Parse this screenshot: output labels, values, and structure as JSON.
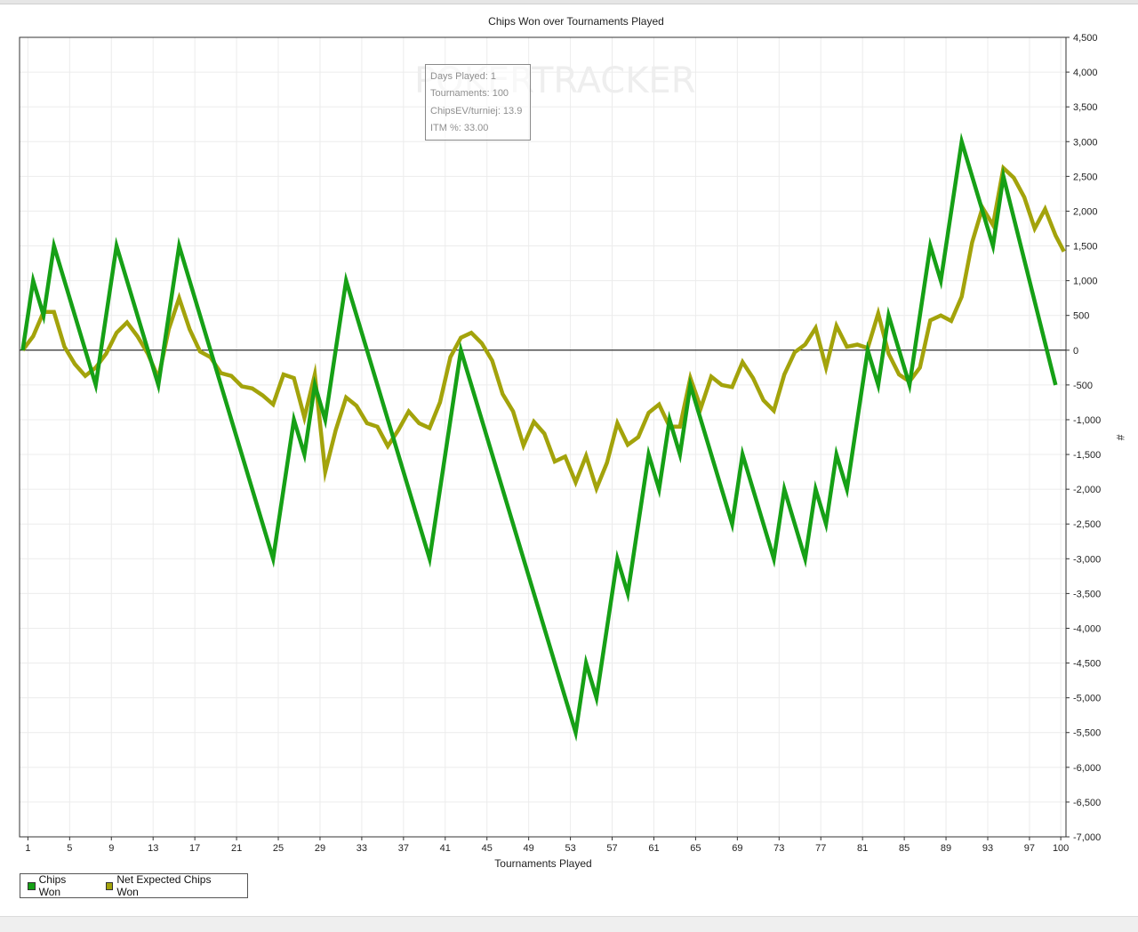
{
  "watermark": "POKERTRACKER",
  "tooltip": {
    "lines": [
      "Days Played: 1",
      "Tournaments: 100",
      "ChipsEV/turniej: 13.9",
      "ITM %: 33.00"
    ]
  },
  "colors": {
    "chips_won": "#16a016",
    "net_expected": "#a3a30b",
    "zero_line": "#000000",
    "grid": "#ececec"
  },
  "chart_data": {
    "type": "line",
    "title": "Chips Won over Tournaments Played",
    "xlabel": "Tournaments Played",
    "ylabel": "#",
    "xlim": [
      0.2,
      100.5
    ],
    "ylim": [
      -7000,
      4500
    ],
    "x_ticks": [
      1,
      5,
      9,
      13,
      17,
      21,
      25,
      29,
      33,
      37,
      41,
      45,
      49,
      53,
      57,
      61,
      65,
      69,
      73,
      77,
      81,
      85,
      89,
      93,
      97,
      100
    ],
    "y_ticks": [
      4500,
      4000,
      3500,
      3000,
      2500,
      2000,
      1500,
      1000,
      500,
      0,
      -500,
      -1000,
      -1500,
      -2000,
      -2500,
      -3000,
      -3500,
      -4000,
      -4500,
      -5000,
      -5500,
      -6000,
      -6500,
      -7000
    ],
    "grid": true,
    "legend_position": "bottom-left",
    "series": [
      {
        "name": "Chips Won",
        "points": [
          [
            0.5,
            0
          ],
          [
            1.5,
            1000
          ],
          [
            2.5,
            500
          ],
          [
            3.5,
            1500
          ],
          [
            7.5,
            -500
          ],
          [
            9.5,
            1500
          ],
          [
            13.5,
            -500
          ],
          [
            15.5,
            1500
          ],
          [
            24.5,
            -3000
          ],
          [
            26.5,
            -1000
          ],
          [
            27.5,
            -1500
          ],
          [
            28.5,
            -500
          ],
          [
            29.5,
            -1000
          ],
          [
            31.5,
            1000
          ],
          [
            39.5,
            -3000
          ],
          [
            42.5,
            0
          ],
          [
            53.5,
            -5500
          ],
          [
            54.5,
            -4500
          ],
          [
            55.5,
            -5000
          ],
          [
            57.5,
            -3000
          ],
          [
            58.5,
            -3500
          ],
          [
            60.5,
            -1500
          ],
          [
            61.5,
            -2000
          ],
          [
            62.5,
            -1000
          ],
          [
            63.5,
            -1500
          ],
          [
            64.5,
            -500
          ],
          [
            68.5,
            -2500
          ],
          [
            69.5,
            -1500
          ],
          [
            72.5,
            -3000
          ],
          [
            73.5,
            -2000
          ],
          [
            75.5,
            -3000
          ],
          [
            76.5,
            -2000
          ],
          [
            77.5,
            -2500
          ],
          [
            78.5,
            -1500
          ],
          [
            79.5,
            -2000
          ],
          [
            81.5,
            0
          ],
          [
            82.5,
            -500
          ],
          [
            83.5,
            500
          ],
          [
            85.5,
            -500
          ],
          [
            87.5,
            1500
          ],
          [
            88.5,
            1000
          ],
          [
            90.5,
            3000
          ],
          [
            93.5,
            1500
          ],
          [
            94.5,
            2500
          ],
          [
            99.5,
            -500
          ]
        ]
      },
      {
        "name": "Net Expected Chips Won",
        "points": [
          [
            0.5,
            0
          ],
          [
            1.5,
            200
          ],
          [
            2.5,
            550
          ],
          [
            3.5,
            550
          ],
          [
            4.5,
            50
          ],
          [
            5.5,
            -200
          ],
          [
            6.5,
            -370
          ],
          [
            7.5,
            -250
          ],
          [
            8.5,
            -50
          ],
          [
            9.5,
            250
          ],
          [
            10.5,
            400
          ],
          [
            11.5,
            200
          ],
          [
            12.5,
            -50
          ],
          [
            13.5,
            -400
          ],
          [
            14.5,
            300
          ],
          [
            15.5,
            750
          ],
          [
            16.5,
            300
          ],
          [
            17.5,
            -20
          ],
          [
            18.5,
            -100
          ],
          [
            19.5,
            -330
          ],
          [
            20.5,
            -370
          ],
          [
            21.5,
            -520
          ],
          [
            22.5,
            -550
          ],
          [
            23.5,
            -650
          ],
          [
            24.5,
            -780
          ],
          [
            25.5,
            -350
          ],
          [
            26.5,
            -400
          ],
          [
            27.5,
            -970
          ],
          [
            28.5,
            -350
          ],
          [
            29.5,
            -1750
          ],
          [
            30.5,
            -1150
          ],
          [
            31.5,
            -680
          ],
          [
            32.5,
            -800
          ],
          [
            33.5,
            -1050
          ],
          [
            34.5,
            -1100
          ],
          [
            35.5,
            -1380
          ],
          [
            36.5,
            -1150
          ],
          [
            37.5,
            -880
          ],
          [
            38.5,
            -1050
          ],
          [
            39.5,
            -1120
          ],
          [
            40.5,
            -750
          ],
          [
            41.5,
            -100
          ],
          [
            42.5,
            180
          ],
          [
            43.5,
            250
          ],
          [
            44.5,
            100
          ],
          [
            45.5,
            -150
          ],
          [
            46.5,
            -630
          ],
          [
            47.5,
            -880
          ],
          [
            48.5,
            -1370
          ],
          [
            49.5,
            -1030
          ],
          [
            50.5,
            -1200
          ],
          [
            51.5,
            -1600
          ],
          [
            52.5,
            -1530
          ],
          [
            53.5,
            -1900
          ],
          [
            54.5,
            -1520
          ],
          [
            55.5,
            -1990
          ],
          [
            56.5,
            -1620
          ],
          [
            57.5,
            -1050
          ],
          [
            58.5,
            -1360
          ],
          [
            59.5,
            -1250
          ],
          [
            60.5,
            -900
          ],
          [
            61.5,
            -780
          ],
          [
            62.5,
            -1100
          ],
          [
            63.5,
            -1100
          ],
          [
            64.5,
            -400
          ],
          [
            65.5,
            -830
          ],
          [
            66.5,
            -380
          ],
          [
            67.5,
            -500
          ],
          [
            68.5,
            -530
          ],
          [
            69.5,
            -170
          ],
          [
            70.5,
            -400
          ],
          [
            71.5,
            -720
          ],
          [
            72.5,
            -870
          ],
          [
            73.5,
            -350
          ],
          [
            74.5,
            -30
          ],
          [
            75.5,
            80
          ],
          [
            76.5,
            320
          ],
          [
            77.5,
            -250
          ],
          [
            78.5,
            350
          ],
          [
            79.5,
            50
          ],
          [
            80.5,
            80
          ],
          [
            81.5,
            30
          ],
          [
            82.5,
            530
          ],
          [
            83.5,
            -50
          ],
          [
            84.5,
            -350
          ],
          [
            85.5,
            -450
          ],
          [
            86.5,
            -250
          ],
          [
            87.5,
            430
          ],
          [
            88.5,
            500
          ],
          [
            89.5,
            420
          ],
          [
            90.5,
            770
          ],
          [
            91.5,
            1550
          ],
          [
            92.5,
            2050
          ],
          [
            93.5,
            1800
          ],
          [
            94.5,
            2620
          ],
          [
            95.5,
            2480
          ],
          [
            96.5,
            2200
          ],
          [
            97.5,
            1750
          ],
          [
            98.5,
            2030
          ],
          [
            99.5,
            1650
          ],
          [
            100.3,
            1420
          ]
        ]
      }
    ]
  }
}
